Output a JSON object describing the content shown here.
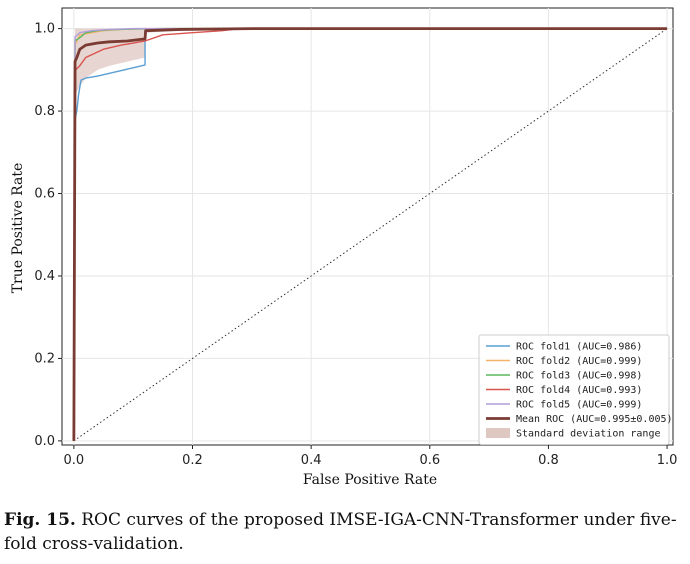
{
  "chart_data": {
    "type": "line",
    "xlabel": "False Positive Rate",
    "ylabel": "True Positive Rate",
    "xlim": [
      -0.02,
      1.01
    ],
    "ylim": [
      -0.01,
      1.05
    ],
    "xticks": [
      "0.0",
      "0.2",
      "0.4",
      "0.6",
      "0.8",
      "1.0"
    ],
    "yticks": [
      "0.0",
      "0.2",
      "0.4",
      "0.6",
      "0.8",
      "1.0"
    ],
    "grid": true,
    "legend_position": "bottom-right",
    "chance_line": {
      "x": [
        0,
        1
      ],
      "y": [
        0,
        1
      ],
      "style": "dotted"
    },
    "series": [
      {
        "name": "ROC fold1 (AUC=0.986)",
        "color": "#5a9fd4",
        "x": [
          0,
          0.002,
          0.005,
          0.008,
          0.012,
          0.02,
          0.04,
          0.07,
          0.1,
          0.12,
          0.12,
          0.2,
          0.3,
          1.0
        ],
        "y": [
          0,
          0.78,
          0.8,
          0.84,
          0.875,
          0.88,
          0.885,
          0.895,
          0.905,
          0.912,
          0.997,
          0.998,
          1.0,
          1.0
        ]
      },
      {
        "name": "ROC fold2 (AUC=0.999)",
        "color": "#f5b26b",
        "x": [
          0,
          0.002,
          0.01,
          0.03,
          0.05,
          0.08,
          0.12,
          0.2,
          1.0
        ],
        "y": [
          0,
          0.96,
          0.985,
          0.99,
          0.995,
          0.998,
          1.0,
          1.0,
          1.0
        ]
      },
      {
        "name": "ROC fold3 (AUC=0.998)",
        "color": "#5cb85c",
        "x": [
          0,
          0.002,
          0.01,
          0.02,
          0.04,
          0.06,
          0.1,
          0.15,
          1.0
        ],
        "y": [
          0,
          0.97,
          0.978,
          0.99,
          0.995,
          0.997,
          0.999,
          1.0,
          1.0
        ]
      },
      {
        "name": "ROC fold4 (AUC=0.993)",
        "color": "#d9534f",
        "x": [
          0,
          0.003,
          0.01,
          0.02,
          0.035,
          0.05,
          0.08,
          0.1,
          0.12,
          0.15,
          0.2,
          0.25,
          0.28,
          1.0
        ],
        "y": [
          0,
          0.9,
          0.91,
          0.93,
          0.94,
          0.95,
          0.96,
          0.965,
          0.97,
          0.985,
          0.99,
          0.995,
          1.0,
          1.0
        ]
      },
      {
        "name": "ROC fold5 (AUC=0.999)",
        "color": "#b39ddb",
        "x": [
          0,
          0.002,
          0.01,
          0.03,
          0.06,
          0.1,
          1.0
        ],
        "y": [
          0,
          0.98,
          0.99,
          0.995,
          0.998,
          1.0,
          1.0
        ]
      },
      {
        "name": "Mean ROC (AUC=0.995±0.005)",
        "color": "#7a3b32",
        "bold": true,
        "x": [
          0,
          0.002,
          0.005,
          0.01,
          0.02,
          0.04,
          0.06,
          0.09,
          0.12,
          0.121,
          0.18,
          0.3,
          1.0
        ],
        "y": [
          0,
          0.92,
          0.93,
          0.95,
          0.96,
          0.965,
          0.968,
          0.97,
          0.975,
          0.995,
          0.998,
          1.0,
          1.0
        ]
      }
    ],
    "std_band": {
      "label": "Standard deviation range",
      "color": "#c9a19a",
      "x": [
        0,
        0.002,
        0.01,
        0.02,
        0.04,
        0.06,
        0.09,
        0.12,
        0.121,
        0.18,
        0.3,
        1.0
      ],
      "upper": [
        0,
        1.0,
        1.0,
        1.0,
        1.0,
        1.0,
        1.0,
        1.0,
        1.0,
        1.0,
        1.0,
        1.0
      ],
      "lower": [
        0,
        0.84,
        0.86,
        0.88,
        0.9,
        0.91,
        0.92,
        0.93,
        0.99,
        0.995,
        1.0,
        1.0
      ]
    }
  },
  "caption": {
    "label": "Fig. 15.",
    "text": " ROC curves of the proposed IMSE-IGA-CNN-Transformer under five-fold cross-validation."
  }
}
